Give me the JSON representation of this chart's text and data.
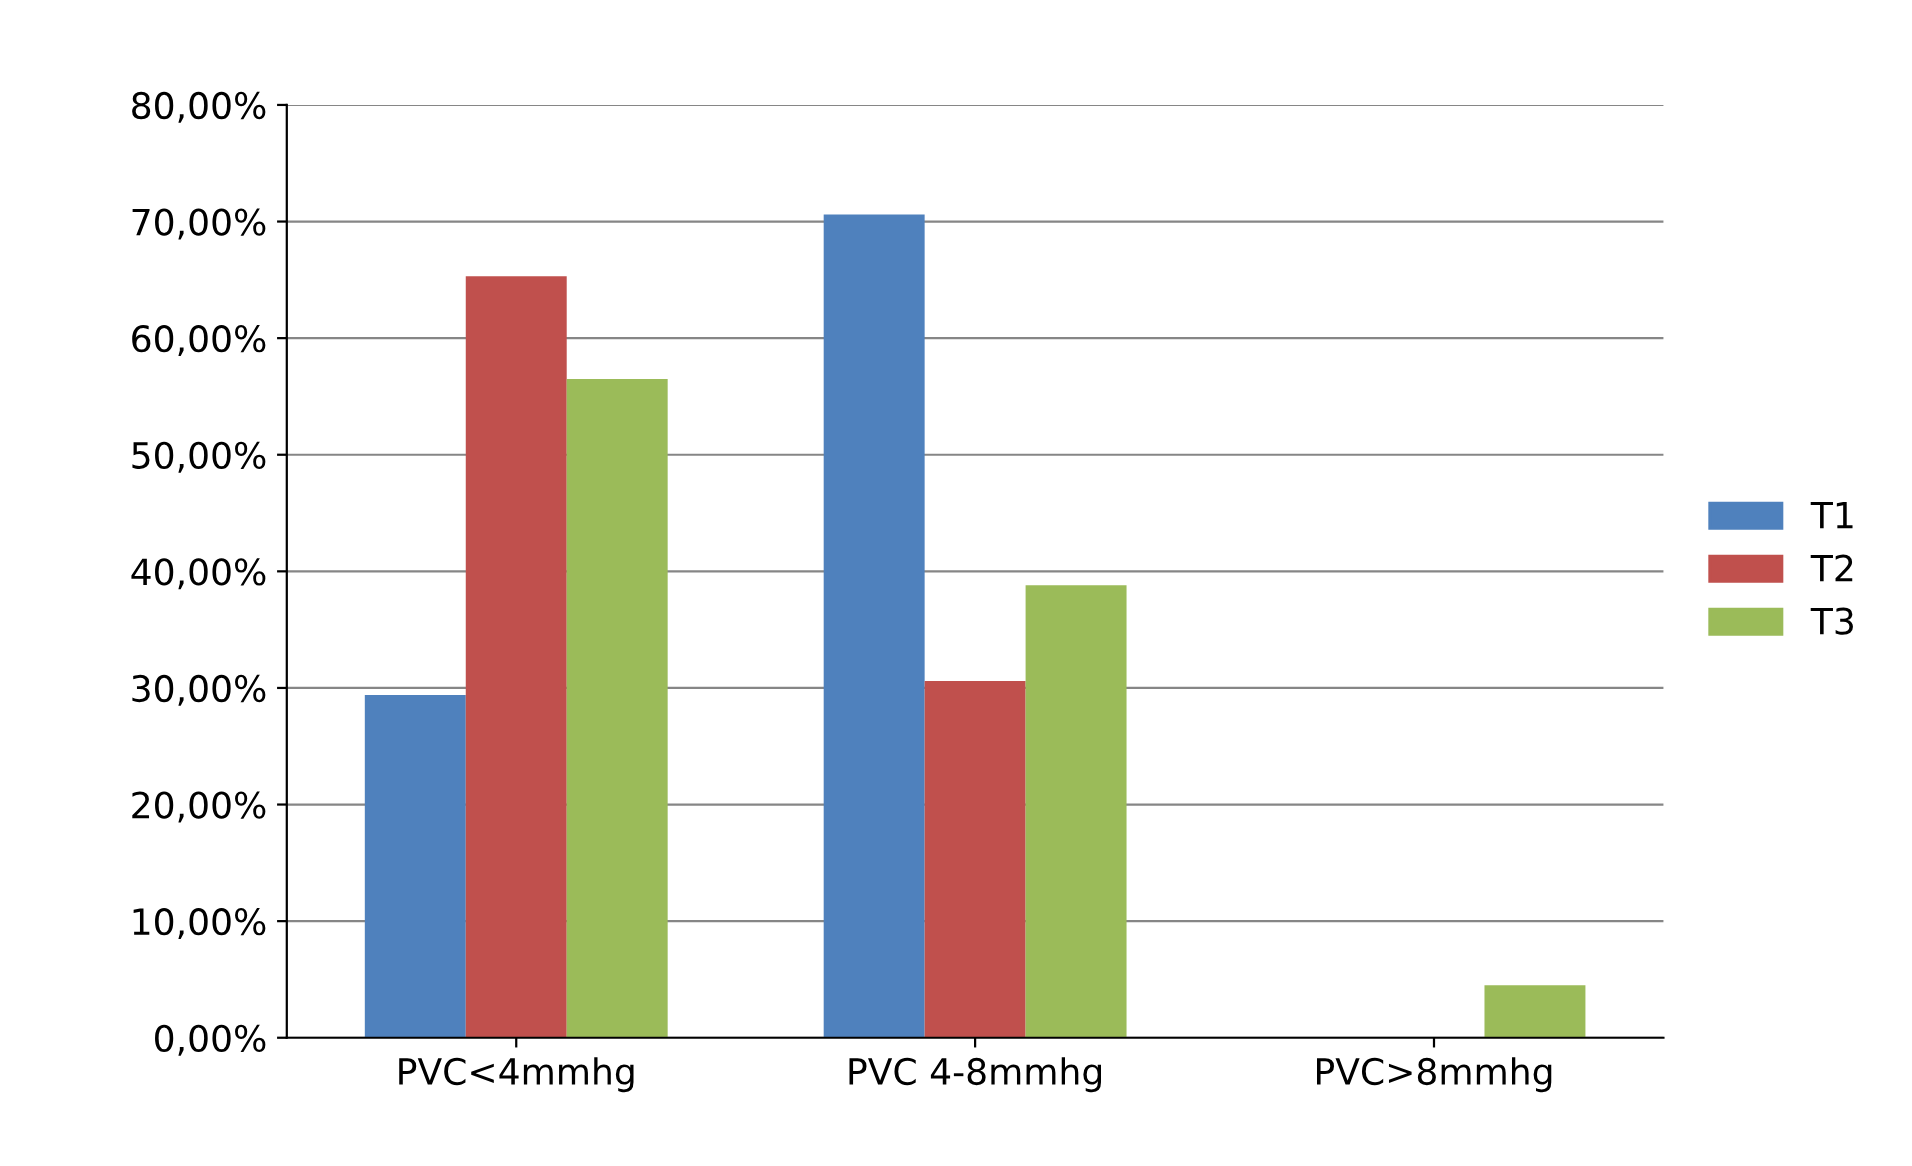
{
  "chart_data": {
    "type": "bar",
    "categories": [
      "PVC<4mmhg",
      "PVC 4-8mmhg",
      "PVC>8mmhg"
    ],
    "series": [
      {
        "name": "T1",
        "color": "#4f81bd",
        "values": [
          29.4,
          70.6,
          0
        ]
      },
      {
        "name": "T2",
        "color": "#c0504d",
        "values": [
          65.3,
          30.6,
          0
        ]
      },
      {
        "name": "T3",
        "color": "#9bbb59",
        "values": [
          56.5,
          38.8,
          4.5
        ]
      }
    ],
    "ylim": [
      0,
      80
    ],
    "yticks": [
      {
        "value": 0,
        "label": "0,00%"
      },
      {
        "value": 10,
        "label": "10,00%"
      },
      {
        "value": 20,
        "label": "20,00%"
      },
      {
        "value": 30,
        "label": "30,00%"
      },
      {
        "value": 40,
        "label": "40,00%"
      },
      {
        "value": 50,
        "label": "50,00%"
      },
      {
        "value": 60,
        "label": "60,00%"
      },
      {
        "value": 70,
        "label": "70,00%"
      },
      {
        "value": 80,
        "label": "80,00%"
      }
    ],
    "grid": "y",
    "legend": "right"
  }
}
